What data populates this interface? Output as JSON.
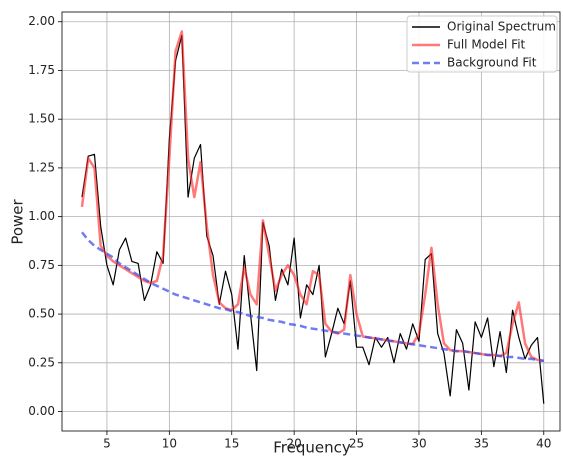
{
  "chart_data": {
    "type": "line",
    "xlabel": "Frequency",
    "ylabel": "Power",
    "xlim": [
      1.4,
      41.3
    ],
    "ylim": [
      -0.1,
      2.05
    ],
    "xticks": [
      5,
      10,
      15,
      20,
      25,
      30,
      35,
      40
    ],
    "yticks": [
      {
        "value": 0,
        "label": "0.00"
      },
      {
        "value": 0.25,
        "label": "0.25"
      },
      {
        "value": 0.5,
        "label": "0.50"
      },
      {
        "value": 0.75,
        "label": "0.75"
      },
      {
        "value": 1,
        "label": "1.00"
      },
      {
        "value": 1.25,
        "label": "1.25"
      },
      {
        "value": 1.5,
        "label": "1.50"
      },
      {
        "value": 1.75,
        "label": "1.75"
      },
      {
        "value": 2,
        "label": "2.00"
      }
    ],
    "grid": true,
    "legend": "upper right",
    "x": [
      3,
      3.5,
      4,
      4.5,
      5,
      5.5,
      6,
      6.5,
      7,
      7.5,
      8,
      8.5,
      9,
      9.5,
      10,
      10.5,
      11,
      11.5,
      12,
      12.5,
      13,
      13.5,
      14,
      14.5,
      15,
      15.5,
      16,
      16.5,
      17,
      17.5,
      18,
      18.5,
      19,
      19.5,
      20,
      20.5,
      21,
      21.5,
      22,
      22.5,
      23,
      23.5,
      24,
      24.5,
      25,
      25.5,
      26,
      26.5,
      27,
      27.5,
      28,
      28.5,
      29,
      29.5,
      30,
      30.5,
      31,
      31.5,
      32,
      32.5,
      33,
      33.5,
      34,
      34.5,
      35,
      35.5,
      36,
      36.5,
      37,
      37.5,
      38,
      38.5,
      39,
      39.5,
      40
    ],
    "series": [
      {
        "name": "Original Spectrum",
        "color": "#000000",
        "width": 1.2,
        "dash": false,
        "opacity": 1,
        "values": [
          1.1,
          1.31,
          1.32,
          0.95,
          0.75,
          0.65,
          0.83,
          0.89,
          0.77,
          0.76,
          0.57,
          0.65,
          0.82,
          0.76,
          1.4,
          1.8,
          1.93,
          1.1,
          1.3,
          1.37,
          0.9,
          0.8,
          0.55,
          0.72,
          0.6,
          0.32,
          0.8,
          0.5,
          0.21,
          0.97,
          0.85,
          0.57,
          0.73,
          0.65,
          0.89,
          0.48,
          0.65,
          0.6,
          0.75,
          0.28,
          0.4,
          0.53,
          0.45,
          0.67,
          0.33,
          0.33,
          0.24,
          0.38,
          0.33,
          0.38,
          0.25,
          0.4,
          0.32,
          0.45,
          0.36,
          0.78,
          0.81,
          0.4,
          0.3,
          0.08,
          0.42,
          0.35,
          0.11,
          0.46,
          0.38,
          0.48,
          0.23,
          0.41,
          0.2,
          0.52,
          0.38,
          0.27,
          0.34,
          0.38,
          0.04
        ]
      },
      {
        "name": "Full Model Fit",
        "color": "#ff2020",
        "width": 2.5,
        "dash": false,
        "opacity": 0.6,
        "values": [
          1.05,
          1.3,
          1.25,
          0.85,
          0.8,
          0.77,
          0.75,
          0.73,
          0.71,
          0.69,
          0.67,
          0.66,
          0.67,
          0.8,
          1.3,
          1.85,
          1.95,
          1.3,
          1.1,
          1.28,
          0.95,
          0.7,
          0.56,
          0.53,
          0.52,
          0.55,
          0.74,
          0.6,
          0.55,
          0.98,
          0.8,
          0.62,
          0.7,
          0.75,
          0.7,
          0.6,
          0.55,
          0.72,
          0.7,
          0.45,
          0.41,
          0.4,
          0.42,
          0.7,
          0.5,
          0.385,
          0.38,
          0.375,
          0.37,
          0.365,
          0.36,
          0.355,
          0.35,
          0.345,
          0.4,
          0.6,
          0.84,
          0.55,
          0.35,
          0.315,
          0.31,
          0.31,
          0.305,
          0.3,
          0.295,
          0.29,
          0.29,
          0.285,
          0.3,
          0.45,
          0.56,
          0.35,
          0.28,
          0.265,
          0.26
        ]
      },
      {
        "name": "Background Fit",
        "color": "#3344ee",
        "width": 2.5,
        "dash": true,
        "opacity": 0.7,
        "values": [
          0.92,
          0.88,
          0.85,
          0.83,
          0.81,
          0.79,
          0.76,
          0.74,
          0.72,
          0.7,
          0.68,
          0.66,
          0.645,
          0.63,
          0.615,
          0.6,
          0.59,
          0.58,
          0.57,
          0.56,
          0.55,
          0.54,
          0.53,
          0.525,
          0.515,
          0.51,
          0.5,
          0.49,
          0.485,
          0.48,
          0.47,
          0.465,
          0.46,
          0.45,
          0.445,
          0.44,
          0.43,
          0.425,
          0.42,
          0.415,
          0.41,
          0.405,
          0.4,
          0.395,
          0.39,
          0.385,
          0.38,
          0.375,
          0.37,
          0.365,
          0.36,
          0.355,
          0.35,
          0.345,
          0.34,
          0.335,
          0.33,
          0.325,
          0.32,
          0.315,
          0.31,
          0.31,
          0.305,
          0.3,
          0.295,
          0.29,
          0.29,
          0.285,
          0.28,
          0.28,
          0.275,
          0.27,
          0.27,
          0.265,
          0.26
        ]
      }
    ]
  }
}
